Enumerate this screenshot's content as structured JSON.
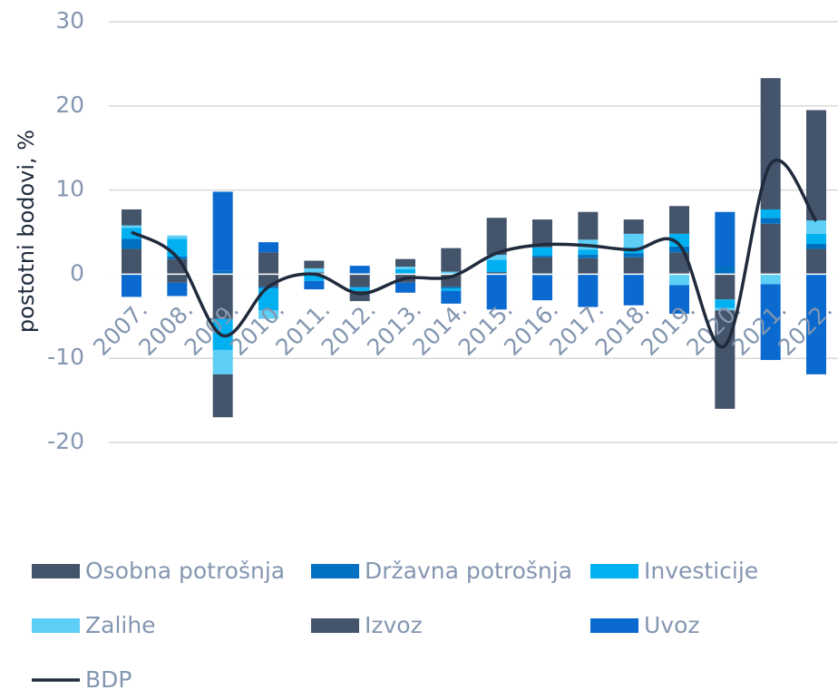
{
  "chart_data": {
    "type": "stacked_bar_line",
    "y_label": "postotni bodovi, %",
    "categories": [
      "2007.",
      "2008.",
      "2009.",
      "2010.",
      "2011.",
      "2012.",
      "2013.",
      "2014.",
      "2015.",
      "2016.",
      "2017.",
      "2018.",
      "2019.",
      "2020.",
      "2021.",
      "2022."
    ],
    "series": [
      {
        "name": "Osobna potrošnja",
        "color": "#44546a",
        "values": [
          3.0,
          1.8,
          -5.3,
          -1.5,
          0.2,
          -1.5,
          -1.0,
          -1.5,
          0.2,
          2.0,
          1.9,
          2.0,
          2.6,
          -3.0,
          6.0,
          3.0
        ]
      },
      {
        "name": "Državna potrošnja",
        "color": "#0070c0",
        "values": [
          1.2,
          0.3,
          0.4,
          -0.2,
          -0.1,
          -0.1,
          0.1,
          -0.2,
          0.1,
          0.2,
          0.4,
          0.5,
          0.7,
          0.9,
          0.7,
          0.6
        ]
      },
      {
        "name": "Investicije",
        "color": "#00b0f0",
        "values": [
          1.3,
          2.1,
          -3.7,
          -2.6,
          -0.7,
          -0.4,
          0.5,
          -0.3,
          1.4,
          1.0,
          0.6,
          0.7,
          1.5,
          -1.0,
          1.0,
          1.2
        ]
      },
      {
        "name": "Zalihe",
        "color": "#5dcef6",
        "values": [
          0.3,
          0.4,
          -2.9,
          -1.0,
          0.5,
          0.1,
          0.3,
          0.3,
          0.6,
          -0.1,
          1.2,
          1.6,
          -1.3,
          -0.3,
          -1.2,
          1.6
        ]
      },
      {
        "name": "Izvoz",
        "color": "#44546a",
        "values": [
          1.9,
          -1.0,
          -5.1,
          2.6,
          0.9,
          -1.2,
          0.9,
          2.8,
          4.4,
          3.3,
          3.3,
          1.7,
          3.3,
          -11.7,
          15.6,
          13.1
        ]
      },
      {
        "name": "Uvoz",
        "color": "#0a6ad0",
        "values": [
          -2.7,
          -1.6,
          9.4,
          1.2,
          -1.0,
          0.9,
          -1.2,
          -1.5,
          -4.2,
          -3.0,
          -3.9,
          -3.7,
          -3.4,
          6.5,
          -9.0,
          -11.9
        ]
      },
      {
        "name": "BDP",
        "type": "line",
        "color": "#1f2a3c",
        "values": [
          5.0,
          2.0,
          -7.3,
          -1.5,
          0.0,
          -2.3,
          -0.5,
          -0.3,
          2.5,
          3.5,
          3.4,
          2.9,
          3.5,
          -8.5,
          13.1,
          6.3
        ]
      }
    ],
    "ylim": [
      -20,
      30
    ],
    "yticks": [
      -20,
      -10,
      0,
      10,
      20,
      30
    ],
    "grid": true
  }
}
